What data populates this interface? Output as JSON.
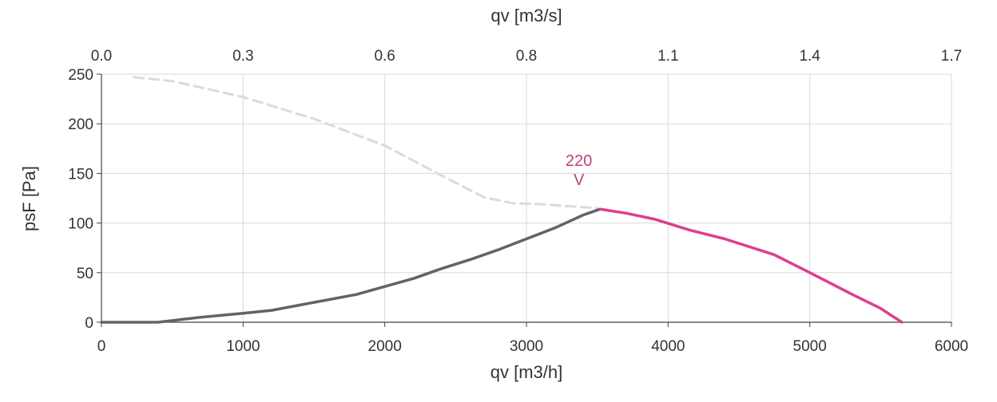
{
  "chart_data": {
    "type": "line",
    "title": "",
    "xlabel": "qv [m3/h]",
    "x2label": "qv [m3/s]",
    "ylabel": "psF [Pa]",
    "xlim": [
      0,
      6000
    ],
    "ylim": [
      0,
      250
    ],
    "x_ticks": [
      0,
      1000,
      2000,
      3000,
      4000,
      5000,
      6000
    ],
    "x_tick_labels": [
      "0",
      "1000",
      "2000",
      "3000",
      "4000",
      "5000",
      "6000"
    ],
    "x2_tick_labels": [
      "0.0",
      "0.3",
      "0.6",
      "0.8",
      "1.1",
      "1.4",
      "1.7"
    ],
    "y_ticks": [
      0,
      50,
      100,
      150,
      200,
      250
    ],
    "y_tick_labels": [
      "0",
      "50",
      "100",
      "150",
      "200",
      "250"
    ],
    "grid": true,
    "annotation": {
      "line1": "220",
      "line2": "V",
      "x": 3370,
      "y": 140
    },
    "series": [
      {
        "role": "curve-dashed",
        "color": "#d5dbe6",
        "style": "dashed",
        "x": [
          230,
          500,
          1000,
          1500,
          2000,
          2400,
          2700,
          2900,
          3100,
          3300,
          3500
        ],
        "y": [
          247,
          243,
          227,
          205,
          178,
          148,
          126,
          120,
          119,
          117,
          115
        ]
      },
      {
        "role": "curve-gray",
        "color": "#636363",
        "style": "solid",
        "x": [
          0,
          400,
          700,
          1000,
          1200,
          1500,
          1800,
          2000,
          2200,
          2400,
          2600,
          2800,
          3000,
          3200,
          3400,
          3520
        ],
        "y": [
          0,
          0,
          5,
          9,
          12,
          20,
          28,
          36,
          44,
          54,
          63,
          73,
          84,
          95,
          108,
          114
        ]
      },
      {
        "role": "curve-magenta",
        "color": "#de3e8f",
        "style": "solid",
        "x": [
          3520,
          3700,
          3900,
          4150,
          4400,
          4750,
          5000,
          5300,
          5500,
          5650
        ],
        "y": [
          114,
          110,
          104,
          93,
          84,
          68,
          50,
          28,
          14,
          0
        ]
      }
    ]
  }
}
